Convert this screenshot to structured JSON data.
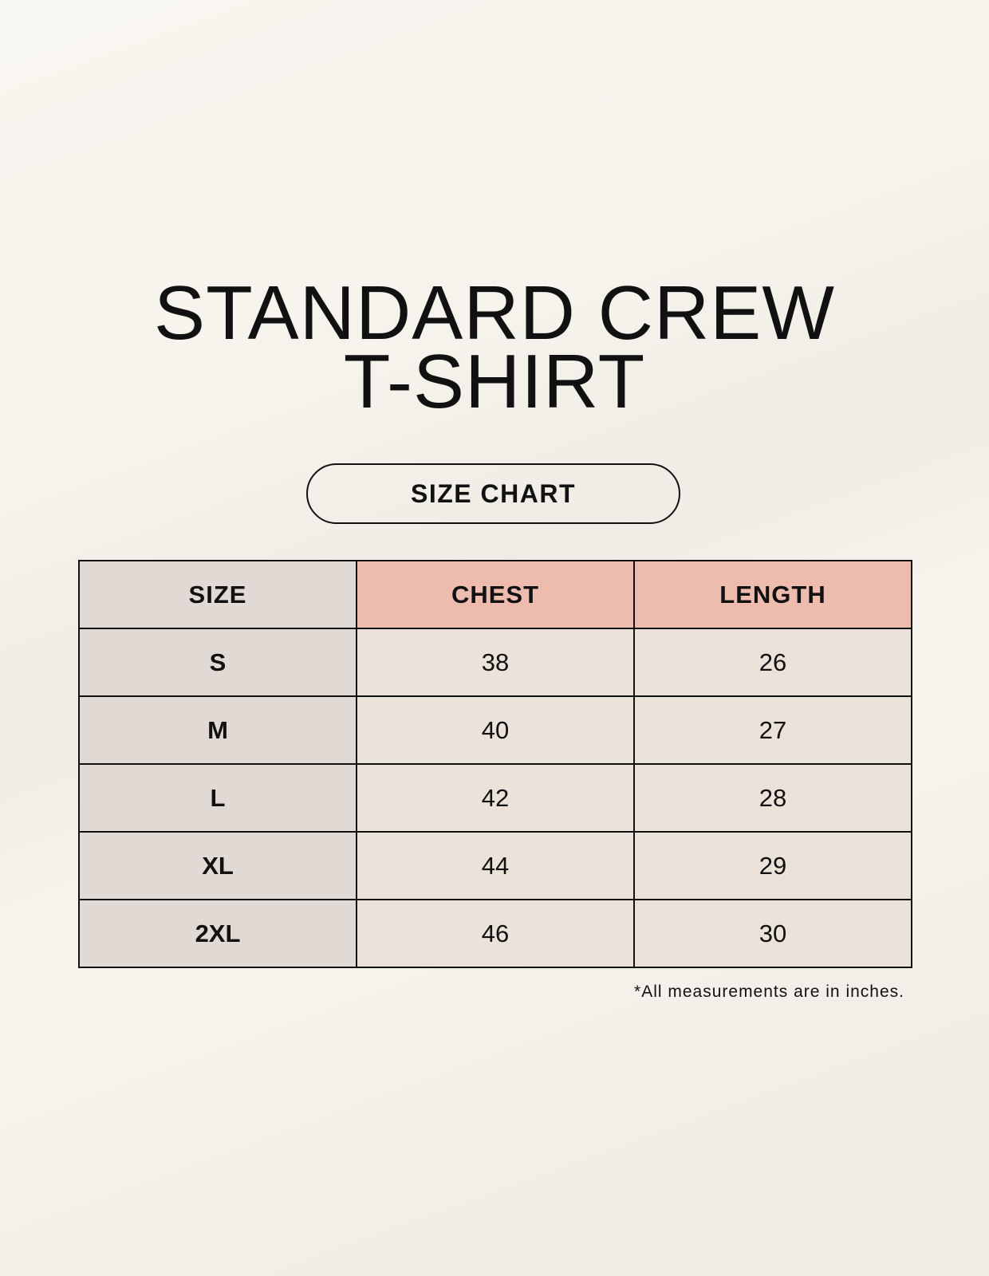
{
  "title_line1": "STANDARD CREW",
  "title_line2": "T-SHIRT",
  "badge": "SIZE CHART",
  "table": {
    "headers": [
      "SIZE",
      "CHEST",
      "LENGTH"
    ],
    "rows": [
      [
        "S",
        "38",
        "26"
      ],
      [
        "M",
        "40",
        "27"
      ],
      [
        "L",
        "42",
        "28"
      ],
      [
        "XL",
        "44",
        "29"
      ],
      [
        "2XL",
        "46",
        "30"
      ]
    ]
  },
  "note": "*All measurements are in inches.",
  "colors": {
    "size_column": "#e0d9d4",
    "header_accent": "#edbcaf",
    "cell": "#ebe3d9"
  }
}
